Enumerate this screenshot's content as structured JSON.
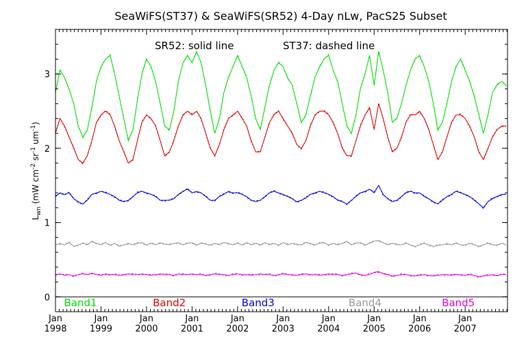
{
  "chart_data": {
    "type": "line",
    "title": "SeaWiFS(ST37) & SeaWiFS(SR52) 4-Day nLw, PacS25 Subset",
    "annotation_solid": "SR52: solid line",
    "annotation_dashed": "ST37: dashed line",
    "ylabel": {
      "main": "L",
      "sub": "wn",
      "unit_open": " (mW cm",
      "exp1": "-2",
      "unit_mid1": " sr",
      "exp2": "-1",
      "unit_mid2": " um",
      "exp3": "-1",
      "unit_close": ")"
    },
    "ylim": [
      -0.2,
      3.6
    ],
    "yticks": [
      {
        "value": 0,
        "label": "0"
      },
      {
        "value": 1,
        "label": "1"
      },
      {
        "value": 2,
        "label": "2"
      },
      {
        "value": 3,
        "label": "3"
      }
    ],
    "xlim": [
      1998.0,
      2007.93
    ],
    "xticks": [
      {
        "value": 1998,
        "month": "Jan",
        "year": "1998"
      },
      {
        "value": 1999,
        "month": "Jan",
        "year": "1999"
      },
      {
        "value": 2000,
        "month": "Jan",
        "year": "2000"
      },
      {
        "value": 2001,
        "month": "Jan",
        "year": "2001"
      },
      {
        "value": 2002,
        "month": "Jan",
        "year": "2002"
      },
      {
        "value": 2003,
        "month": "Jan",
        "year": "2003"
      },
      {
        "value": 2004,
        "month": "Jan",
        "year": "2004"
      },
      {
        "value": 2005,
        "month": "Jan",
        "year": "2005"
      },
      {
        "value": 2006,
        "month": "Jan",
        "year": "2006"
      },
      {
        "value": 2007,
        "month": "Jan",
        "year": "2007"
      }
    ],
    "grid": false,
    "series": [
      {
        "name": "Band1",
        "color": "#00dd00",
        "label_x": 1998.55,
        "x": [
          1998.0,
          1998.1,
          1998.2,
          1998.3,
          1998.4,
          1998.5,
          1998.6,
          1998.7,
          1998.8,
          1998.9,
          1999.0,
          1999.1,
          1999.2,
          1999.3,
          1999.4,
          1999.5,
          1999.6,
          1999.7,
          1999.8,
          1999.9,
          2000.0,
          2000.1,
          2000.2,
          2000.3,
          2000.4,
          2000.5,
          2000.6,
          2000.7,
          2000.8,
          2000.9,
          2001.0,
          2001.1,
          2001.2,
          2001.3,
          2001.4,
          2001.5,
          2001.6,
          2001.7,
          2001.8,
          2001.9,
          2002.0,
          2002.1,
          2002.2,
          2002.3,
          2002.4,
          2002.5,
          2002.6,
          2002.7,
          2002.8,
          2002.9,
          2003.0,
          2003.1,
          2003.2,
          2003.3,
          2003.4,
          2003.5,
          2003.6,
          2003.7,
          2003.8,
          2003.9,
          2004.0,
          2004.1,
          2004.2,
          2004.3,
          2004.4,
          2004.5,
          2004.6,
          2004.7,
          2004.8,
          2004.9,
          2005.0,
          2005.1,
          2005.2,
          2005.3,
          2005.4,
          2005.5,
          2005.6,
          2005.7,
          2005.8,
          2005.9,
          2006.0,
          2006.1,
          2006.2,
          2006.3,
          2006.4,
          2006.5,
          2006.6,
          2006.7,
          2006.8,
          2006.9,
          2007.0,
          2007.1,
          2007.2,
          2007.3,
          2007.4,
          2007.5,
          2007.6,
          2007.7,
          2007.8,
          2007.9
        ],
        "values": [
          2.75,
          3.05,
          2.95,
          2.8,
          2.6,
          2.3,
          2.15,
          2.25,
          2.55,
          2.9,
          3.1,
          3.2,
          3.25,
          3.0,
          2.7,
          2.4,
          2.1,
          2.25,
          2.65,
          3.0,
          3.2,
          3.1,
          2.9,
          2.6,
          2.3,
          2.25,
          2.5,
          2.9,
          3.15,
          3.25,
          3.15,
          3.3,
          3.15,
          2.85,
          2.5,
          2.2,
          2.4,
          2.75,
          2.95,
          3.1,
          3.25,
          3.1,
          2.95,
          2.7,
          2.4,
          2.25,
          2.55,
          2.85,
          3.05,
          3.15,
          3.1,
          2.95,
          2.85,
          2.6,
          2.35,
          2.45,
          2.7,
          2.95,
          3.1,
          3.2,
          3.25,
          3.05,
          2.9,
          2.6,
          2.3,
          2.2,
          2.45,
          2.8,
          3.0,
          3.25,
          2.85,
          3.3,
          3.05,
          2.75,
          2.35,
          2.4,
          2.6,
          2.85,
          3.05,
          3.2,
          3.25,
          3.1,
          2.9,
          2.6,
          2.25,
          2.35,
          2.6,
          2.9,
          3.1,
          3.2,
          3.05,
          2.9,
          2.7,
          2.45,
          2.2,
          2.45,
          2.75,
          2.85,
          2.9,
          2.85
        ]
      },
      {
        "name": "Band2",
        "color": "#dd0000",
        "label_x": 2000.5,
        "x": [
          1998.0,
          1998.1,
          1998.2,
          1998.3,
          1998.4,
          1998.5,
          1998.6,
          1998.7,
          1998.8,
          1998.9,
          1999.0,
          1999.1,
          1999.2,
          1999.3,
          1999.4,
          1999.5,
          1999.6,
          1999.7,
          1999.8,
          1999.9,
          2000.0,
          2000.1,
          2000.2,
          2000.3,
          2000.4,
          2000.5,
          2000.6,
          2000.7,
          2000.8,
          2000.9,
          2001.0,
          2001.1,
          2001.2,
          2001.3,
          2001.4,
          2001.5,
          2001.6,
          2001.7,
          2001.8,
          2001.9,
          2002.0,
          2002.1,
          2002.2,
          2002.3,
          2002.4,
          2002.5,
          2002.6,
          2002.7,
          2002.8,
          2002.9,
          2003.0,
          2003.1,
          2003.2,
          2003.3,
          2003.4,
          2003.5,
          2003.6,
          2003.7,
          2003.8,
          2003.9,
          2004.0,
          2004.1,
          2004.2,
          2004.3,
          2004.4,
          2004.5,
          2004.6,
          2004.7,
          2004.8,
          2004.9,
          2005.0,
          2005.1,
          2005.2,
          2005.3,
          2005.4,
          2005.5,
          2005.6,
          2005.7,
          2005.8,
          2005.9,
          2006.0,
          2006.1,
          2006.2,
          2006.3,
          2006.4,
          2006.5,
          2006.6,
          2006.7,
          2006.8,
          2006.9,
          2007.0,
          2007.1,
          2007.2,
          2007.3,
          2007.4,
          2007.5,
          2007.6,
          2007.7,
          2007.8,
          2007.9
        ],
        "values": [
          2.2,
          2.4,
          2.3,
          2.15,
          2.0,
          1.85,
          1.8,
          1.9,
          2.1,
          2.35,
          2.45,
          2.5,
          2.45,
          2.3,
          2.1,
          1.95,
          1.8,
          1.85,
          2.1,
          2.35,
          2.45,
          2.4,
          2.3,
          2.1,
          1.9,
          1.95,
          2.1,
          2.3,
          2.45,
          2.5,
          2.45,
          2.5,
          2.4,
          2.2,
          2.0,
          1.9,
          2.05,
          2.25,
          2.4,
          2.45,
          2.5,
          2.4,
          2.3,
          2.1,
          1.95,
          1.95,
          2.15,
          2.35,
          2.45,
          2.5,
          2.4,
          2.3,
          2.2,
          2.05,
          2.0,
          2.1,
          2.3,
          2.45,
          2.5,
          2.5,
          2.45,
          2.35,
          2.2,
          2.0,
          1.9,
          1.9,
          2.1,
          2.3,
          2.45,
          2.55,
          2.25,
          2.6,
          2.4,
          2.15,
          1.95,
          2.0,
          2.15,
          2.35,
          2.45,
          2.45,
          2.5,
          2.4,
          2.25,
          2.05,
          1.85,
          1.95,
          2.15,
          2.35,
          2.45,
          2.45,
          2.4,
          2.3,
          2.15,
          1.95,
          1.85,
          2.0,
          2.15,
          2.25,
          2.3,
          2.3
        ]
      },
      {
        "name": "Band3",
        "color": "#0000dd",
        "label_x": 2002.45,
        "x": [
          1998.0,
          1998.1,
          1998.2,
          1998.3,
          1998.4,
          1998.5,
          1998.6,
          1998.7,
          1998.8,
          1998.9,
          1999.0,
          1999.1,
          1999.2,
          1999.3,
          1999.4,
          1999.5,
          1999.6,
          1999.7,
          1999.8,
          1999.9,
          2000.0,
          2000.1,
          2000.2,
          2000.3,
          2000.4,
          2000.5,
          2000.6,
          2000.7,
          2000.8,
          2000.9,
          2001.0,
          2001.1,
          2001.2,
          2001.3,
          2001.4,
          2001.5,
          2001.6,
          2001.7,
          2001.8,
          2001.9,
          2002.0,
          2002.1,
          2002.2,
          2002.3,
          2002.4,
          2002.5,
          2002.6,
          2002.7,
          2002.8,
          2002.9,
          2003.0,
          2003.1,
          2003.2,
          2003.3,
          2003.4,
          2003.5,
          2003.6,
          2003.7,
          2003.8,
          2003.9,
          2004.0,
          2004.1,
          2004.2,
          2004.3,
          2004.4,
          2004.5,
          2004.6,
          2004.7,
          2004.8,
          2004.9,
          2005.0,
          2005.1,
          2005.2,
          2005.3,
          2005.4,
          2005.5,
          2005.6,
          2005.7,
          2005.8,
          2005.9,
          2006.0,
          2006.1,
          2006.2,
          2006.3,
          2006.4,
          2006.5,
          2006.6,
          2006.7,
          2006.8,
          2006.9,
          2007.0,
          2007.1,
          2007.2,
          2007.3,
          2007.4,
          2007.5,
          2007.6,
          2007.7,
          2007.8,
          2007.9
        ],
        "values": [
          1.35,
          1.4,
          1.38,
          1.4,
          1.32,
          1.28,
          1.25,
          1.3,
          1.38,
          1.4,
          1.42,
          1.4,
          1.38,
          1.35,
          1.3,
          1.28,
          1.3,
          1.35,
          1.4,
          1.42,
          1.4,
          1.38,
          1.35,
          1.3,
          1.3,
          1.3,
          1.32,
          1.38,
          1.42,
          1.45,
          1.4,
          1.42,
          1.4,
          1.35,
          1.3,
          1.3,
          1.35,
          1.38,
          1.42,
          1.4,
          1.4,
          1.38,
          1.35,
          1.3,
          1.28,
          1.3,
          1.35,
          1.4,
          1.42,
          1.4,
          1.38,
          1.35,
          1.32,
          1.28,
          1.3,
          1.33,
          1.38,
          1.4,
          1.42,
          1.4,
          1.38,
          1.35,
          1.3,
          1.28,
          1.25,
          1.3,
          1.35,
          1.4,
          1.42,
          1.45,
          1.4,
          1.5,
          1.38,
          1.32,
          1.28,
          1.3,
          1.35,
          1.4,
          1.42,
          1.4,
          1.4,
          1.35,
          1.32,
          1.28,
          1.25,
          1.3,
          1.35,
          1.38,
          1.42,
          1.4,
          1.38,
          1.35,
          1.3,
          1.25,
          1.2,
          1.28,
          1.32,
          1.35,
          1.38,
          1.38
        ]
      },
      {
        "name": "Band4",
        "color": "#999999",
        "label_x": 2004.8,
        "x": [
          1998.0,
          1998.1,
          1998.2,
          1998.3,
          1998.4,
          1998.5,
          1998.6,
          1998.7,
          1998.8,
          1998.9,
          1999.0,
          1999.1,
          1999.2,
          1999.3,
          1999.4,
          1999.5,
          1999.6,
          1999.7,
          1999.8,
          1999.9,
          2000.0,
          2000.1,
          2000.2,
          2000.3,
          2000.4,
          2000.5,
          2000.6,
          2000.7,
          2000.8,
          2000.9,
          2001.0,
          2001.1,
          2001.2,
          2001.3,
          2001.4,
          2001.5,
          2001.6,
          2001.7,
          2001.8,
          2001.9,
          2002.0,
          2002.1,
          2002.2,
          2002.3,
          2002.4,
          2002.5,
          2002.6,
          2002.7,
          2002.8,
          2002.9,
          2003.0,
          2003.1,
          2003.2,
          2003.3,
          2003.4,
          2003.5,
          2003.6,
          2003.7,
          2003.8,
          2003.9,
          2004.0,
          2004.1,
          2004.2,
          2004.3,
          2004.4,
          2004.5,
          2004.6,
          2004.7,
          2004.8,
          2004.9,
          2005.0,
          2005.1,
          2005.2,
          2005.3,
          2005.4,
          2005.5,
          2005.6,
          2005.7,
          2005.8,
          2005.9,
          2006.0,
          2006.1,
          2006.2,
          2006.3,
          2006.4,
          2006.5,
          2006.6,
          2006.7,
          2006.8,
          2006.9,
          2007.0,
          2007.1,
          2007.2,
          2007.3,
          2007.4,
          2007.5,
          2007.6,
          2007.7,
          2007.8,
          2007.9
        ],
        "values": [
          0.7,
          0.72,
          0.7,
          0.73,
          0.68,
          0.7,
          0.72,
          0.7,
          0.75,
          0.72,
          0.7,
          0.73,
          0.7,
          0.72,
          0.68,
          0.7,
          0.72,
          0.7,
          0.72,
          0.73,
          0.7,
          0.72,
          0.7,
          0.73,
          0.71,
          0.7,
          0.72,
          0.73,
          0.7,
          0.72,
          0.73,
          0.7,
          0.72,
          0.71,
          0.7,
          0.72,
          0.7,
          0.73,
          0.72,
          0.7,
          0.72,
          0.7,
          0.73,
          0.7,
          0.72,
          0.7,
          0.73,
          0.7,
          0.72,
          0.7,
          0.73,
          0.7,
          0.72,
          0.71,
          0.7,
          0.73,
          0.72,
          0.7,
          0.72,
          0.73,
          0.7,
          0.72,
          0.7,
          0.72,
          0.75,
          0.7,
          0.72,
          0.73,
          0.7,
          0.72,
          0.75,
          0.76,
          0.73,
          0.7,
          0.72,
          0.71,
          0.7,
          0.72,
          0.7,
          0.68,
          0.7,
          0.72,
          0.7,
          0.68,
          0.69,
          0.7,
          0.72,
          0.7,
          0.72,
          0.7,
          0.7,
          0.72,
          0.7,
          0.68,
          0.7,
          0.72,
          0.7,
          0.7,
          0.72,
          0.7
        ]
      },
      {
        "name": "Band5",
        "color": "#dd00dd",
        "label_x": 2006.85,
        "x": [
          1998.0,
          1998.1,
          1998.2,
          1998.3,
          1998.4,
          1998.5,
          1998.6,
          1998.7,
          1998.8,
          1998.9,
          1999.0,
          1999.1,
          1999.2,
          1999.3,
          1999.4,
          1999.5,
          1999.6,
          1999.7,
          1999.8,
          1999.9,
          2000.0,
          2000.1,
          2000.2,
          2000.3,
          2000.4,
          2000.5,
          2000.6,
          2000.7,
          2000.8,
          2000.9,
          2001.0,
          2001.1,
          2001.2,
          2001.3,
          2001.4,
          2001.5,
          2001.6,
          2001.7,
          2001.8,
          2001.9,
          2002.0,
          2002.1,
          2002.2,
          2002.3,
          2002.4,
          2002.5,
          2002.6,
          2002.7,
          2002.8,
          2002.9,
          2003.0,
          2003.1,
          2003.2,
          2003.3,
          2003.4,
          2003.5,
          2003.6,
          2003.7,
          2003.8,
          2003.9,
          2004.0,
          2004.1,
          2004.2,
          2004.3,
          2004.4,
          2004.5,
          2004.6,
          2004.7,
          2004.8,
          2004.9,
          2005.0,
          2005.1,
          2005.2,
          2005.3,
          2005.4,
          2005.5,
          2005.6,
          2005.7,
          2005.8,
          2005.9,
          2006.0,
          2006.1,
          2006.2,
          2006.3,
          2006.4,
          2006.5,
          2006.6,
          2006.7,
          2006.8,
          2006.9,
          2007.0,
          2007.1,
          2007.2,
          2007.3,
          2007.4,
          2007.5,
          2007.6,
          2007.7,
          2007.8,
          2007.9
        ],
        "values": [
          0.3,
          0.31,
          0.29,
          0.3,
          0.28,
          0.3,
          0.31,
          0.3,
          0.32,
          0.3,
          0.29,
          0.31,
          0.3,
          0.3,
          0.29,
          0.3,
          0.31,
          0.3,
          0.3,
          0.31,
          0.3,
          0.29,
          0.3,
          0.31,
          0.3,
          0.3,
          0.29,
          0.31,
          0.3,
          0.3,
          0.31,
          0.3,
          0.3,
          0.29,
          0.3,
          0.31,
          0.3,
          0.3,
          0.29,
          0.3,
          0.31,
          0.3,
          0.3,
          0.29,
          0.3,
          0.31,
          0.3,
          0.3,
          0.29,
          0.3,
          0.31,
          0.3,
          0.3,
          0.29,
          0.3,
          0.31,
          0.3,
          0.3,
          0.29,
          0.3,
          0.31,
          0.3,
          0.3,
          0.29,
          0.3,
          0.31,
          0.32,
          0.3,
          0.29,
          0.3,
          0.33,
          0.34,
          0.31,
          0.3,
          0.28,
          0.29,
          0.3,
          0.3,
          0.29,
          0.28,
          0.29,
          0.3,
          0.29,
          0.28,
          0.29,
          0.3,
          0.3,
          0.29,
          0.3,
          0.3,
          0.29,
          0.3,
          0.29,
          0.27,
          0.28,
          0.29,
          0.3,
          0.29,
          0.3,
          0.3
        ]
      }
    ]
  }
}
